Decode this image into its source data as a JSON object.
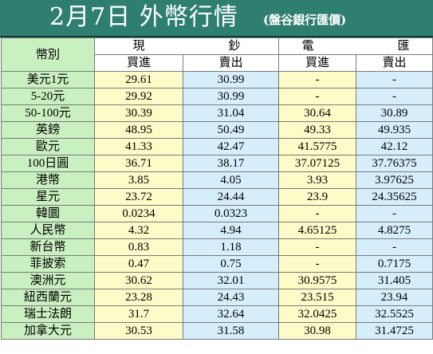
{
  "title": {
    "main": "2月7日 外幣行情",
    "sub": "(盤谷銀行匯價)"
  },
  "headers": {
    "currency": "幣別",
    "cash_a": "現",
    "cash_b": "鈔",
    "transfer_a": "電",
    "transfer_b": "匯",
    "buy": "買進",
    "sell": "賣出"
  },
  "colors": {
    "title_bg": "#2f7f70",
    "currency_col_bg": "#c9f0c0",
    "buy_col_bg": "#fdfbc7",
    "sell_col_bg": "#d6eefc"
  },
  "rows": [
    {
      "currency": "美元1元",
      "cash_buy": "29.61",
      "cash_sell": "30.99",
      "tt_buy": "-",
      "tt_sell": "-"
    },
    {
      "currency": "5-20元",
      "cash_buy": "29.92",
      "cash_sell": "30.99",
      "tt_buy": "-",
      "tt_sell": "-"
    },
    {
      "currency": "50-100元",
      "cash_buy": "30.39",
      "cash_sell": "31.04",
      "tt_buy": "30.64",
      "tt_sell": "30.89"
    },
    {
      "currency": "英鎊",
      "cash_buy": "48.95",
      "cash_sell": "50.49",
      "tt_buy": "49.33",
      "tt_sell": "49.935"
    },
    {
      "currency": "歐元",
      "cash_buy": "41.33",
      "cash_sell": "42.47",
      "tt_buy": "41.5775",
      "tt_sell": "42.12"
    },
    {
      "currency": "100日圓",
      "cash_buy": "36.71",
      "cash_sell": "38.17",
      "tt_buy": "37.07125",
      "tt_sell": "37.76375"
    },
    {
      "currency": "港幣",
      "cash_buy": "3.85",
      "cash_sell": "4.05",
      "tt_buy": "3.93",
      "tt_sell": "3.97625"
    },
    {
      "currency": "星元",
      "cash_buy": "23.72",
      "cash_sell": "24.44",
      "tt_buy": "23.9",
      "tt_sell": "24.35625"
    },
    {
      "currency": "韓圜",
      "cash_buy": "0.0234",
      "cash_sell": "0.0323",
      "tt_buy": "-",
      "tt_sell": "-"
    },
    {
      "currency": "人民幣",
      "cash_buy": "4.32",
      "cash_sell": "4.94",
      "tt_buy": "4.65125",
      "tt_sell": "4.8275"
    },
    {
      "currency": "新台幣",
      "cash_buy": "0.83",
      "cash_sell": "1.18",
      "tt_buy": "-",
      "tt_sell": "-"
    },
    {
      "currency": "菲披索",
      "cash_buy": "0.47",
      "cash_sell": "0.75",
      "tt_buy": "-",
      "tt_sell": "0.7175"
    },
    {
      "currency": "澳洲元",
      "cash_buy": "30.62",
      "cash_sell": "32.01",
      "tt_buy": "30.9575",
      "tt_sell": "31.405"
    },
    {
      "currency": "紐西蘭元",
      "cash_buy": "23.28",
      "cash_sell": "24.43",
      "tt_buy": "23.515",
      "tt_sell": "23.94"
    },
    {
      "currency": "瑞士法朗",
      "cash_buy": "31.7",
      "cash_sell": "32.64",
      "tt_buy": "32.0425",
      "tt_sell": "32.5525"
    },
    {
      "currency": "加拿大元",
      "cash_buy": "30.53",
      "cash_sell": "31.58",
      "tt_buy": "30.98",
      "tt_sell": "31.4725"
    }
  ]
}
